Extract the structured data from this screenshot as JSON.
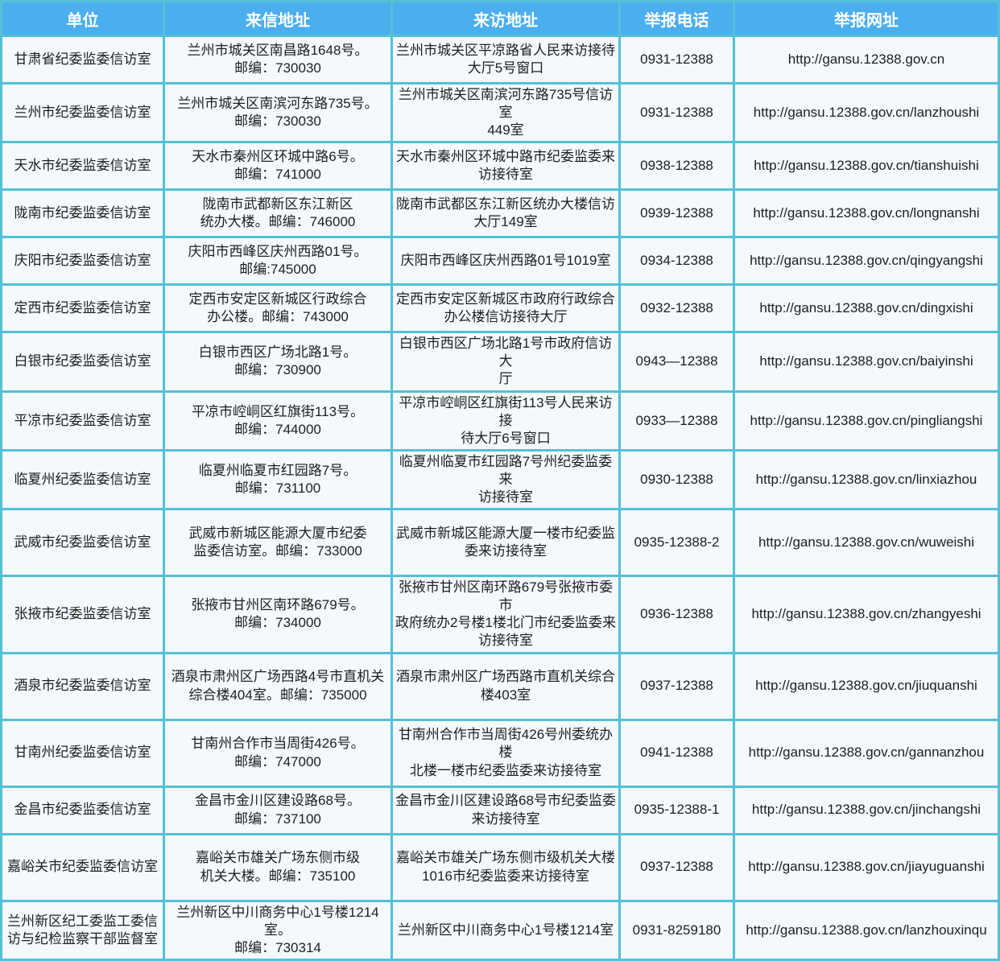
{
  "table": {
    "columns": [
      "单位",
      "来信地址",
      "来访地址",
      "举报电话",
      "举报网址"
    ],
    "rows": [
      {
        "unit": "甘肃省纪委监委信访室",
        "mail": "兰州市城关区南昌路1648号。\n邮编：730030",
        "visit": "兰州市城关区平凉路省人民来访接待\n大厅5号窗口",
        "phone": "0931-12388",
        "url": "http://gansu.12388.gov.cn"
      },
      {
        "unit": "兰州市纪委监委信访室",
        "mail": "兰州市城关区南滨河东路735号。\n邮编：730030",
        "visit": "兰州市城关区南滨河东路735号信访室\n449室",
        "phone": "0931-12388",
        "url": "http://gansu.12388.gov.cn/lanzhoushi"
      },
      {
        "unit": "天水市纪委监委信访室",
        "mail": "天水市秦州区环城中路6号。\n邮编：741000",
        "visit": "天水市秦州区环城中路市纪委监委来\n访接待室",
        "phone": "0938-12388",
        "url": "http://gansu.12388.gov.cn/tianshuishi"
      },
      {
        "unit": "陇南市纪委监委信访室",
        "mail": "陇南市武都新区东江新区\n统办大楼。邮编：746000",
        "visit": "陇南市武都区东江新区统办大楼信访\n大厅149室",
        "phone": "0939-12388",
        "url": "http://gansu.12388.gov.cn/longnanshi"
      },
      {
        "unit": "庆阳市纪委监委信访室",
        "mail": "庆阳市西峰区庆州西路01号。\n邮编:745000",
        "visit": "庆阳市西峰区庆州西路01号1019室",
        "phone": "0934-12388",
        "url": "http://gansu.12388.gov.cn/qingyangshi"
      },
      {
        "unit": "定西市纪委监委信访室",
        "mail": "定西市安定区新城区行政综合\n办公楼。邮编：743000",
        "visit": "定西市安定区新城区市政府行政综合\n办公楼信访接待大厅",
        "phone": "0932-12388",
        "url": "http://gansu.12388.gov.cn/dingxishi"
      },
      {
        "unit": "白银市纪委监委信访室",
        "mail": "白银市西区广场北路1号。\n邮编：730900",
        "visit": "白银市西区广场北路1号市政府信访大\n厅",
        "phone": "0943—12388",
        "url": "http://gansu.12388.gov.cn/baiyinshi"
      },
      {
        "unit": "平凉市纪委监委信访室",
        "mail": "平凉市崆峒区红旗街113号。\n邮编：744000",
        "visit": "平凉市崆峒区红旗街113号人民来访接\n待大厅6号窗口",
        "phone": "0933—12388",
        "url": "http://gansu.12388.gov.cn/pingliangshi"
      },
      {
        "unit": "临夏州纪委监委信访室",
        "mail": "临夏州临夏市红园路7号。\n邮编：731100",
        "visit": "临夏州临夏市红园路7号州纪委监委来\n访接待室",
        "phone": "0930-12388",
        "url": "http://gansu.12388.gov.cn/linxiazhou"
      },
      {
        "unit": "武威市纪委监委信访室",
        "mail": "武威市新城区能源大厦市纪委\n监委信访室。邮编：733000",
        "visit": "武威市新城区能源大厦一楼市纪委监\n委来访接待室",
        "phone": "0935-12388-2",
        "url": "http://gansu.12388.gov.cn/wuweishi"
      },
      {
        "unit": "张掖市纪委监委信访室",
        "mail": "张掖市甘州区南环路679号。\n邮编：734000",
        "visit": "张掖市甘州区南环路679号张掖市委市\n政府统办2号楼1楼北门市纪委监委来\n访接待室",
        "phone": "0936-12388",
        "url": "http://gansu.12388.gov.cn/zhangyeshi"
      },
      {
        "unit": "酒泉市纪委监委信访室",
        "mail": "酒泉市肃州区广场西路4号市直机关\n综合楼404室。邮编：735000",
        "visit": "酒泉市肃州区广场西路市直机关综合\n楼403室",
        "phone": "0937-12388",
        "url": "http://gansu.12388.gov.cn/jiuquanshi"
      },
      {
        "unit": "甘南州纪委监委信访室",
        "mail": "甘南州合作市当周街426号。\n邮编：747000",
        "visit": "甘南州合作市当周街426号州委统办楼\n北楼一楼市纪委监委来访接待室",
        "phone": "0941-12388",
        "url": "http://gansu.12388.gov.cn/gannanzhou"
      },
      {
        "unit": "金昌市纪委监委信访室",
        "mail": "金昌市金川区建设路68号。\n邮编：737100",
        "visit": "金昌市金川区建设路68号市纪委监委\n来访接待室",
        "phone": "0935-12388-1",
        "url": "http://gansu.12388.gov.cn/jinchangshi"
      },
      {
        "unit": "嘉峪关市纪委监委信访室",
        "mail": "嘉峪关市雄关广场东侧市级\n机关大楼。邮编：735100",
        "visit": "嘉峪关市雄关广场东侧市级机关大楼\n1016市纪委监委来访接待室",
        "phone": "0937-12388",
        "url": "http://gansu.12388.gov.cn/jiayuguanshi"
      },
      {
        "unit": "兰州新区纪工委监工委信访与纪检监察干部监督室",
        "mail": "兰州新区中川商务中心1号楼1214室。\n邮编：730314",
        "visit": "兰州新区中川商务中心1号楼1214室",
        "phone": "0931-8259180",
        "url": "http://gansu.12388.gov.cn/lanzhouxinqu"
      }
    ]
  },
  "colors": {
    "header_bg": "#4BAEEF",
    "border": "#53C1D6",
    "cell_bg": "#F3F9FC",
    "header_text": "#FFFFFF",
    "body_text": "#1E1E1E"
  }
}
